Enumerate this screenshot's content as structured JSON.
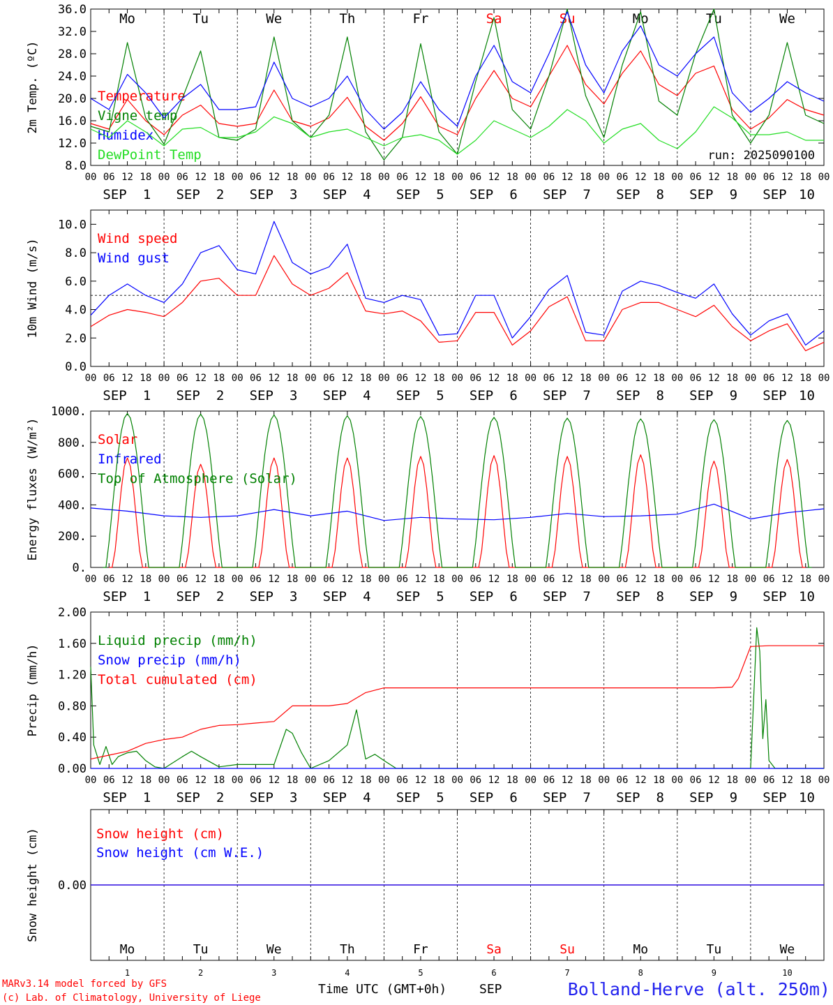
{
  "colors": {
    "red": "#ff0000",
    "green": "#008000",
    "blue": "#0000ff",
    "lightgreen": "#22dd22",
    "black": "#000000"
  },
  "footer": {
    "model": "MARv3.14 model forced by GFS",
    "credit": "(c) Lab. of Climatology, University of Liege",
    "time_label": "Time UTC (GMT+0h)",
    "month": "SEP",
    "station": "Bolland-Herve (alt. 250m)"
  },
  "run_label": "run: 2025090100",
  "days": [
    {
      "abbr": "Mo",
      "date": "1",
      "weekend": false
    },
    {
      "abbr": "Tu",
      "date": "2",
      "weekend": false
    },
    {
      "abbr": "We",
      "date": "3",
      "weekend": false
    },
    {
      "abbr": "Th",
      "date": "4",
      "weekend": false
    },
    {
      "abbr": "Fr",
      "date": "5",
      "weekend": false
    },
    {
      "abbr": "Sa",
      "date": "6",
      "weekend": true
    },
    {
      "abbr": "Su",
      "date": "7",
      "weekend": true
    },
    {
      "abbr": "Mo",
      "date": "8",
      "weekend": false
    },
    {
      "abbr": "Tu",
      "date": "9",
      "weekend": false
    },
    {
      "abbr": "We",
      "date": "10",
      "weekend": false
    }
  ],
  "hour_ticks": [
    "00",
    "06",
    "12",
    "18"
  ],
  "chart_data": [
    {
      "type": "line",
      "ylabel": "2m Temp. (ºC)",
      "ylim": [
        8,
        36
      ],
      "yticks": [
        "8.0",
        "12.0",
        "16.0",
        "20.0",
        "24.0",
        "28.0",
        "32.0",
        "36.0"
      ],
      "x_unit": "hours since 2025-09-01 00 UTC",
      "series": [
        {
          "name": "Temperature",
          "color": "red",
          "x": [
            0,
            6,
            12,
            18,
            24,
            30,
            36,
            42,
            48,
            54,
            60,
            66,
            72,
            78,
            84,
            90,
            96,
            102,
            108,
            114,
            120,
            126,
            132,
            138,
            144,
            150,
            156,
            162,
            168,
            174,
            180,
            186,
            192,
            198,
            204,
            210,
            216,
            222,
            228,
            234,
            240
          ],
          "y": [
            15.5,
            14.5,
            19.8,
            16.0,
            13.5,
            17.0,
            18.8,
            15.5,
            15.0,
            15.5,
            21.5,
            16.0,
            15.0,
            16.5,
            20.2,
            15.0,
            12.5,
            15.5,
            20.3,
            15.0,
            13.5,
            20.0,
            25.0,
            20.0,
            18.5,
            24.0,
            29.5,
            22.5,
            19.0,
            24.5,
            28.5,
            22.5,
            20.5,
            24.5,
            25.8,
            18.0,
            14.5,
            16.5,
            19.8,
            18.0,
            17.0
          ]
        },
        {
          "name": "Vigne temp",
          "color": "green",
          "x": [
            0,
            6,
            12,
            18,
            24,
            30,
            36,
            42,
            48,
            54,
            60,
            66,
            72,
            78,
            84,
            90,
            96,
            102,
            108,
            114,
            120,
            126,
            132,
            138,
            144,
            150,
            156,
            162,
            168,
            174,
            180,
            186,
            192,
            198,
            204,
            210,
            216,
            222,
            228,
            234,
            240
          ],
          "y": [
            15.0,
            14.0,
            30.0,
            16.5,
            11.8,
            20.0,
            28.5,
            13.0,
            12.5,
            14.5,
            31.0,
            16.0,
            13.0,
            17.0,
            31.0,
            14.0,
            9.0,
            13.0,
            29.8,
            14.0,
            10.0,
            23.0,
            34.5,
            18.0,
            14.5,
            24.0,
            36.0,
            20.5,
            13.0,
            26.0,
            35.5,
            19.5,
            17.0,
            28.0,
            36.0,
            17.0,
            12.0,
            17.0,
            30.0,
            17.0,
            15.5
          ]
        },
        {
          "name": "Humidex",
          "color": "blue",
          "x": [
            0,
            6,
            12,
            18,
            24,
            30,
            36,
            42,
            48,
            54,
            60,
            66,
            72,
            78,
            84,
            90,
            96,
            102,
            108,
            114,
            120,
            126,
            132,
            138,
            144,
            150,
            156,
            162,
            168,
            174,
            180,
            186,
            192,
            198,
            204,
            210,
            216,
            222,
            228,
            234,
            240
          ],
          "y": [
            20.0,
            18.0,
            24.3,
            21.0,
            16.5,
            20.0,
            22.5,
            18.0,
            18.0,
            18.5,
            26.5,
            20.0,
            18.5,
            20.0,
            24.0,
            18.0,
            14.5,
            17.5,
            23.0,
            18.0,
            15.0,
            24.0,
            29.5,
            23.0,
            21.0,
            28.0,
            35.5,
            26.0,
            21.0,
            28.5,
            33.0,
            26.0,
            24.0,
            28.0,
            31.0,
            21.0,
            17.5,
            20.0,
            23.0,
            21.0,
            19.5
          ]
        },
        {
          "name": "DewPoint Temp",
          "color": "lightgreen",
          "x": [
            0,
            6,
            12,
            18,
            24,
            30,
            36,
            42,
            48,
            54,
            60,
            66,
            72,
            78,
            84,
            90,
            96,
            102,
            108,
            114,
            120,
            126,
            132,
            138,
            144,
            150,
            156,
            162,
            168,
            174,
            180,
            186,
            192,
            198,
            204,
            210,
            216,
            222,
            228,
            234,
            240
          ],
          "y": [
            14.5,
            13.0,
            16.0,
            14.0,
            11.5,
            14.5,
            14.8,
            13.0,
            13.0,
            14.0,
            16.7,
            15.5,
            13.0,
            14.0,
            14.5,
            13.0,
            11.5,
            13.0,
            13.5,
            12.5,
            10.0,
            12.5,
            16.0,
            14.5,
            13.0,
            15.0,
            18.0,
            16.0,
            12.0,
            14.5,
            15.5,
            12.5,
            11.0,
            14.0,
            18.5,
            16.5,
            13.5,
            13.5,
            14.0,
            12.5,
            12.5
          ]
        }
      ]
    },
    {
      "type": "line",
      "ylabel": "10m Wind (m/s)",
      "ylim": [
        0,
        11
      ],
      "yticks": [
        "0.0",
        "2.0",
        "4.0",
        "6.0",
        "8.0",
        "10.0"
      ],
      "reference_line": 5,
      "series": [
        {
          "name": "Wind speed",
          "color": "red",
          "x": [
            0,
            6,
            12,
            18,
            24,
            30,
            36,
            42,
            48,
            54,
            60,
            66,
            72,
            78,
            84,
            90,
            96,
            102,
            108,
            114,
            120,
            126,
            132,
            138,
            144,
            150,
            156,
            162,
            168,
            174,
            180,
            186,
            192,
            198,
            204,
            210,
            216,
            222,
            228,
            234,
            240
          ],
          "y": [
            2.8,
            3.6,
            4.0,
            3.8,
            3.5,
            4.5,
            6.0,
            6.2,
            5.0,
            5.0,
            7.8,
            5.8,
            5.0,
            5.5,
            6.6,
            3.9,
            3.7,
            3.9,
            3.2,
            1.7,
            1.8,
            3.8,
            3.8,
            1.5,
            2.5,
            4.2,
            4.9,
            1.8,
            1.8,
            4.0,
            4.5,
            4.5,
            4.0,
            3.5,
            4.3,
            2.8,
            1.8,
            2.5,
            3.0,
            1.1,
            1.7
          ]
        },
        {
          "name": "Wind gust",
          "color": "blue",
          "x": [
            0,
            6,
            12,
            18,
            24,
            30,
            36,
            42,
            48,
            54,
            60,
            66,
            72,
            78,
            84,
            90,
            96,
            102,
            108,
            114,
            120,
            126,
            132,
            138,
            144,
            150,
            156,
            162,
            168,
            174,
            180,
            186,
            192,
            198,
            204,
            210,
            216,
            222,
            228,
            234,
            240
          ],
          "y": [
            3.6,
            5.0,
            5.8,
            5.0,
            4.5,
            5.8,
            8.0,
            8.5,
            6.8,
            6.5,
            10.2,
            7.3,
            6.5,
            7.0,
            8.6,
            4.8,
            4.5,
            5.0,
            4.7,
            2.2,
            2.3,
            5.0,
            5.0,
            2.0,
            3.5,
            5.4,
            6.4,
            2.4,
            2.2,
            5.3,
            6.0,
            5.7,
            5.2,
            4.8,
            5.8,
            3.7,
            2.2,
            3.2,
            3.7,
            1.5,
            2.5
          ]
        }
      ]
    },
    {
      "type": "line",
      "ylabel": "Energy fluxes (W/m²)",
      "ylim": [
        0,
        1000
      ],
      "yticks": [
        "0.",
        "200.",
        "400.",
        "600.",
        "800.",
        "1000."
      ],
      "series": [
        {
          "name": "Solar",
          "color": "red",
          "peaks": [
            700,
            660,
            700,
            700,
            710,
            715,
            710,
            720,
            680,
            690
          ]
        },
        {
          "name": "Infrared",
          "color": "blue",
          "x": [
            0,
            12,
            24,
            36,
            48,
            60,
            72,
            84,
            96,
            108,
            120,
            132,
            144,
            156,
            168,
            180,
            192,
            204,
            216,
            228,
            240
          ],
          "y": [
            380,
            360,
            330,
            320,
            330,
            370,
            330,
            360,
            300,
            320,
            310,
            305,
            320,
            345,
            325,
            330,
            340,
            405,
            310,
            350,
            375
          ]
        },
        {
          "name": "Top of Atmosphere (Solar)",
          "color": "green",
          "peaks": [
            985,
            980,
            975,
            970,
            965,
            960,
            955,
            950,
            945,
            940
          ]
        }
      ]
    },
    {
      "type": "line",
      "ylabel": "Precip (mm/h)",
      "ylim": [
        0,
        2
      ],
      "yticks": [
        "0.00",
        "0.40",
        "0.80",
        "1.20",
        "1.60",
        "2.00"
      ],
      "series": [
        {
          "name": "Liquid precip (mm/h)",
          "color": "green",
          "x": [
            0,
            1,
            3,
            5,
            7,
            9,
            12,
            15,
            18,
            21,
            24,
            30,
            33,
            36,
            42,
            48,
            54,
            60,
            64,
            66,
            69,
            72,
            78,
            84,
            87,
            90,
            93,
            96,
            100,
            216,
            218,
            219,
            220,
            221,
            222,
            224,
            240
          ],
          "y": [
            1.3,
            0.3,
            0.05,
            0.28,
            0.05,
            0.15,
            0.2,
            0.22,
            0.1,
            0.02,
            0,
            0.15,
            0.22,
            0.15,
            0.02,
            0.05,
            0.05,
            0.05,
            0.5,
            0.45,
            0.2,
            0,
            0.1,
            0.3,
            0.75,
            0.12,
            0.18,
            0.1,
            0,
            0,
            1.8,
            1.5,
            0.38,
            0.88,
            0.1,
            0,
            0
          ]
        },
        {
          "name": "Snow precip (mm/h)",
          "color": "blue",
          "x": [
            0,
            240
          ],
          "y": [
            0,
            0
          ]
        },
        {
          "name": "Total cumulated (cm)",
          "color": "red",
          "x": [
            0,
            6,
            12,
            18,
            24,
            30,
            36,
            42,
            48,
            54,
            60,
            66,
            72,
            78,
            84,
            90,
            96,
            120,
            144,
            168,
            192,
            204,
            210,
            212,
            216,
            222,
            228,
            234,
            240
          ],
          "y": [
            0.12,
            0.17,
            0.22,
            0.32,
            0.37,
            0.4,
            0.5,
            0.55,
            0.56,
            0.58,
            0.6,
            0.8,
            0.8,
            0.8,
            0.83,
            0.97,
            1.03,
            1.03,
            1.03,
            1.03,
            1.03,
            1.03,
            1.04,
            1.15,
            1.56,
            1.57,
            1.57,
            1.57,
            1.57
          ]
        }
      ]
    },
    {
      "type": "line",
      "ylabel": "Snow height (cm)",
      "ylim": [
        -1,
        1
      ],
      "yticks": [
        "0.00"
      ],
      "series": [
        {
          "name": "Snow height (cm)",
          "color": "red",
          "x": [
            0,
            240
          ],
          "y": [
            0,
            0
          ]
        },
        {
          "name": "Snow height (cm W.E.)",
          "color": "blue",
          "x": [
            0,
            240
          ],
          "y": [
            0,
            0
          ]
        }
      ]
    }
  ]
}
